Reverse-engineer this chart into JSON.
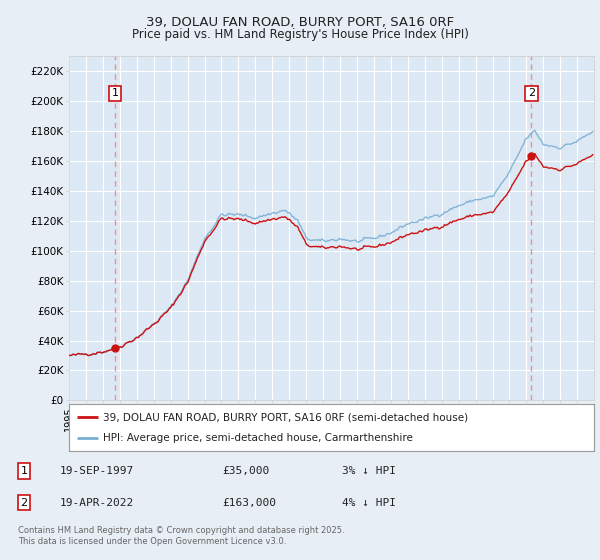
{
  "title": "39, DOLAU FAN ROAD, BURRY PORT, SA16 0RF",
  "subtitle": "Price paid vs. HM Land Registry's House Price Index (HPI)",
  "background_color": "#e8eef5",
  "plot_bg_color": "#dce8f4",
  "grid_color": "#ffffff",
  "hpi_color": "#7aafd4",
  "price_color": "#cc1111",
  "sale1_date": "19-SEP-1997",
  "sale1_price": 35000,
  "sale1_year": 1997.72,
  "sale1_pct": "3% ↓ HPI",
  "sale2_date": "19-APR-2022",
  "sale2_price": 163000,
  "sale2_year": 2022.29,
  "sale2_pct": "4% ↓ HPI",
  "legend_label1": "39, DOLAU FAN ROAD, BURRY PORT, SA16 0RF (semi-detached house)",
  "legend_label2": "HPI: Average price, semi-detached house, Carmarthenshire",
  "footer": "Contains HM Land Registry data © Crown copyright and database right 2025.\nThis data is licensed under the Open Government Licence v3.0.",
  "xlim_start": 1995.0,
  "xlim_end": 2025.99,
  "ylim_top": 230000,
  "yticks": [
    0,
    20000,
    40000,
    60000,
    80000,
    100000,
    120000,
    140000,
    160000,
    180000,
    200000,
    220000
  ],
  "ytick_labels": [
    "£0",
    "£20K",
    "£40K",
    "£60K",
    "£80K",
    "£100K",
    "£120K",
    "£140K",
    "£160K",
    "£180K",
    "£200K",
    "£220K"
  ]
}
